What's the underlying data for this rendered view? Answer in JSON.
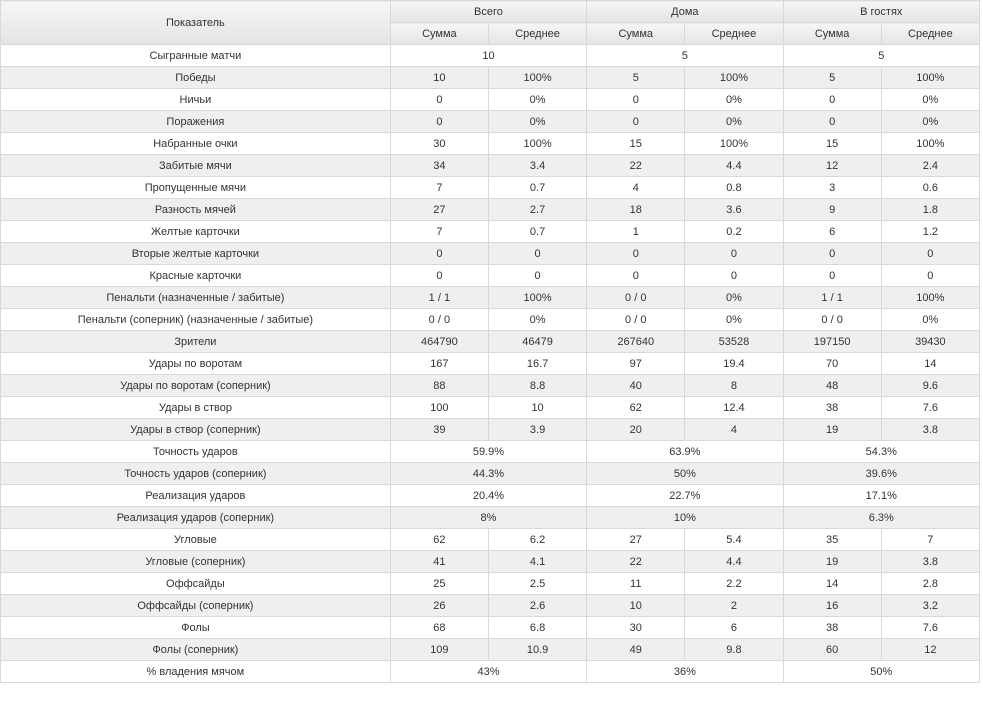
{
  "table": {
    "label_header": "Показатель",
    "groups": [
      "Всего",
      "Дома",
      "В гостях"
    ],
    "subheaders": [
      "Сумма",
      "Среднее"
    ],
    "rows": [
      {
        "label": "Сыгранные матчи",
        "cells": [
          "10",
          "5",
          "5"
        ],
        "merged": true
      },
      {
        "label": "Победы",
        "cells": [
          "10",
          "100%",
          "5",
          "100%",
          "5",
          "100%"
        ]
      },
      {
        "label": "Ничьи",
        "cells": [
          "0",
          "0%",
          "0",
          "0%",
          "0",
          "0%"
        ]
      },
      {
        "label": "Поражения",
        "cells": [
          "0",
          "0%",
          "0",
          "0%",
          "0",
          "0%"
        ]
      },
      {
        "label": "Набранные очки",
        "cells": [
          "30",
          "100%",
          "15",
          "100%",
          "15",
          "100%"
        ]
      },
      {
        "label": "Забитые мячи",
        "cells": [
          "34",
          "3.4",
          "22",
          "4.4",
          "12",
          "2.4"
        ]
      },
      {
        "label": "Пропущенные мячи",
        "cells": [
          "7",
          "0.7",
          "4",
          "0.8",
          "3",
          "0.6"
        ]
      },
      {
        "label": "Разность мячей",
        "cells": [
          "27",
          "2.7",
          "18",
          "3.6",
          "9",
          "1.8"
        ]
      },
      {
        "label": "Желтые карточки",
        "cells": [
          "7",
          "0.7",
          "1",
          "0.2",
          "6",
          "1.2"
        ]
      },
      {
        "label": "Вторые желтые карточки",
        "cells": [
          "0",
          "0",
          "0",
          "0",
          "0",
          "0"
        ]
      },
      {
        "label": "Красные карточки",
        "cells": [
          "0",
          "0",
          "0",
          "0",
          "0",
          "0"
        ]
      },
      {
        "label": "Пенальти (назначенные / забитые)",
        "cells": [
          "1 / 1",
          "100%",
          "0 / 0",
          "0%",
          "1 / 1",
          "100%"
        ]
      },
      {
        "label": "Пенальти (соперник) (назначенные / забитые)",
        "cells": [
          "0 / 0",
          "0%",
          "0 / 0",
          "0%",
          "0 / 0",
          "0%"
        ]
      },
      {
        "label": "Зрители",
        "cells": [
          "464790",
          "46479",
          "267640",
          "53528",
          "197150",
          "39430"
        ]
      },
      {
        "label": "Удары по воротам",
        "cells": [
          "167",
          "16.7",
          "97",
          "19.4",
          "70",
          "14"
        ]
      },
      {
        "label": "Удары по воротам (соперник)",
        "cells": [
          "88",
          "8.8",
          "40",
          "8",
          "48",
          "9.6"
        ]
      },
      {
        "label": "Удары в створ",
        "cells": [
          "100",
          "10",
          "62",
          "12.4",
          "38",
          "7.6"
        ]
      },
      {
        "label": "Удары в створ (соперник)",
        "cells": [
          "39",
          "3.9",
          "20",
          "4",
          "19",
          "3.8"
        ]
      },
      {
        "label": "Точность ударов",
        "cells": [
          "59.9%",
          "63.9%",
          "54.3%"
        ],
        "merged": true
      },
      {
        "label": "Точность ударов (соперник)",
        "cells": [
          "44.3%",
          "50%",
          "39.6%"
        ],
        "merged": true
      },
      {
        "label": "Реализация ударов",
        "cells": [
          "20.4%",
          "22.7%",
          "17.1%"
        ],
        "merged": true
      },
      {
        "label": "Реализация ударов (соперник)",
        "cells": [
          "8%",
          "10%",
          "6.3%"
        ],
        "merged": true
      },
      {
        "label": "Угловые",
        "cells": [
          "62",
          "6.2",
          "27",
          "5.4",
          "35",
          "7"
        ]
      },
      {
        "label": "Угловые (соперник)",
        "cells": [
          "41",
          "4.1",
          "22",
          "4.4",
          "19",
          "3.8"
        ]
      },
      {
        "label": "Оффсайды",
        "cells": [
          "25",
          "2.5",
          "11",
          "2.2",
          "14",
          "2.8"
        ]
      },
      {
        "label": "Оффсайды (соперник)",
        "cells": [
          "26",
          "2.6",
          "10",
          "2",
          "16",
          "3.2"
        ]
      },
      {
        "label": "Фолы",
        "cells": [
          "68",
          "6.8",
          "30",
          "6",
          "38",
          "7.6"
        ]
      },
      {
        "label": "Фолы (соперник)",
        "cells": [
          "109",
          "10.9",
          "49",
          "9.8",
          "60",
          "12"
        ]
      },
      {
        "label": "% владения мячом",
        "cells": [
          "43%",
          "36%",
          "50%"
        ],
        "merged": true
      }
    ]
  }
}
